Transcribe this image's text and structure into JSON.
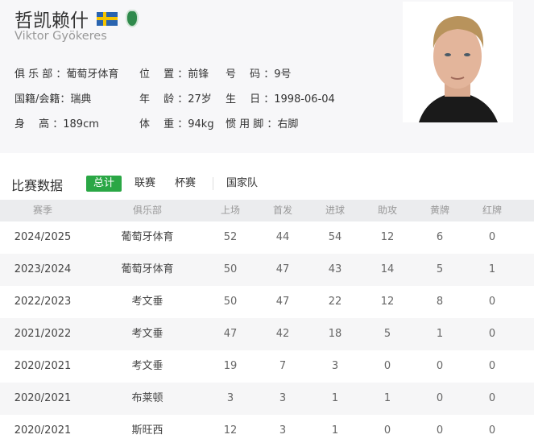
{
  "player": {
    "name_cn": "哲凯赖什",
    "name_en": "Viktor Gyökeres",
    "flag_icon": "sweden-flag-icon",
    "club_icon": "sporting-cp-crest-icon",
    "info_rows": [
      [
        "俱 乐 部 ：葡萄牙体育",
        "位　 置 ：前锋",
        "号　 码 ：9号"
      ],
      [
        "国籍/会籍：瑞典",
        "年　 龄 ：27岁",
        "生　 日 ：1998-06-04"
      ],
      [
        "身　 高 ：189cm",
        "体　 重 ：94kg",
        "惯 用 脚 ：右脚"
      ]
    ]
  },
  "stats": {
    "title": "比赛数据",
    "tabs": [
      {
        "label": "总计",
        "active": true
      },
      {
        "label": "联赛"
      },
      {
        "label": "杯赛"
      },
      {
        "label": "国家队"
      }
    ],
    "accent": "#2aa745",
    "columns": [
      "赛季",
      "俱乐部",
      "上场",
      "首发",
      "进球",
      "助攻",
      "黄牌",
      "红牌"
    ],
    "rows": [
      [
        "2024/2025",
        "葡萄牙体育",
        "52",
        "44",
        "54",
        "12",
        "6",
        "0"
      ],
      [
        "2023/2024",
        "葡萄牙体育",
        "50",
        "47",
        "43",
        "14",
        "5",
        "1"
      ],
      [
        "2022/2023",
        "考文垂",
        "50",
        "47",
        "22",
        "12",
        "8",
        "0"
      ],
      [
        "2021/2022",
        "考文垂",
        "47",
        "42",
        "18",
        "5",
        "1",
        "0"
      ],
      [
        "2020/2021",
        "考文垂",
        "19",
        "7",
        "3",
        "0",
        "0",
        "0"
      ],
      [
        "2020/2021",
        "布莱顿",
        "3",
        "3",
        "1",
        "1",
        "0",
        "0"
      ],
      [
        "2020/2021",
        "斯旺西",
        "12",
        "3",
        "1",
        "0",
        "0",
        "0"
      ]
    ]
  }
}
